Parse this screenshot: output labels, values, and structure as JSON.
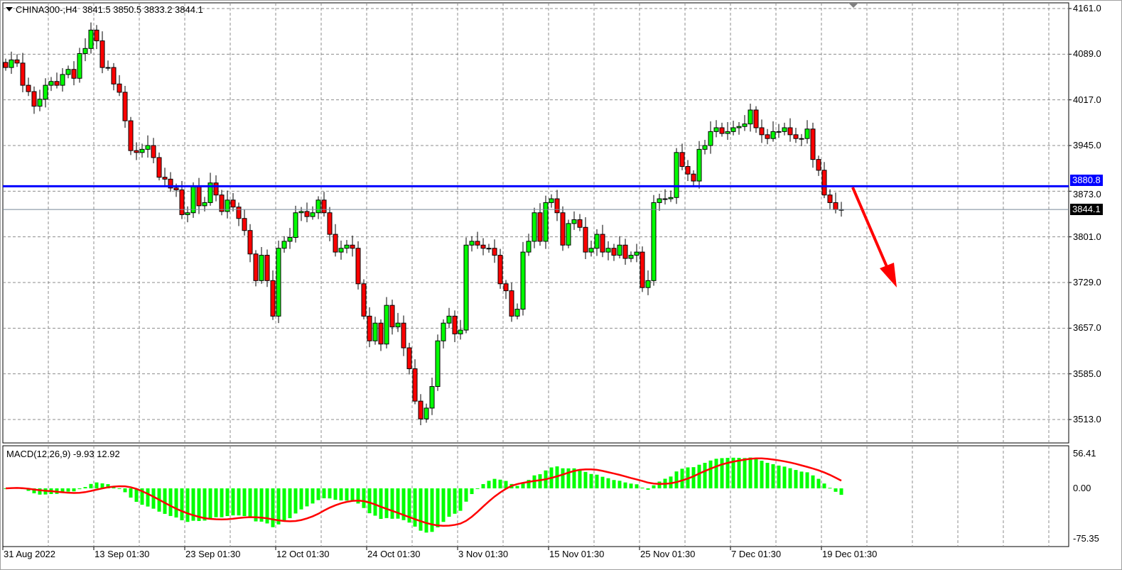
{
  "header": {
    "symbol_title": "CHINA300-,H4",
    "ohlc": "3841.5 3850.5 3833.2 3844.1"
  },
  "macd": {
    "title": "MACD(12,26,9) -9.93 12.92",
    "params": [
      12,
      26,
      9
    ],
    "axis_labels": [
      "56.41",
      "0.00",
      "-75.35"
    ],
    "histogram_color": "#00ff00",
    "signal_color": "#ff0000"
  },
  "colors": {
    "bull": "#00ff00",
    "bear": "#ff0000",
    "hline": "#0000ff",
    "arrow": "#ff0000",
    "bid_line": "#778899"
  },
  "chart_data": {
    "type": "candlestick",
    "symbol": "CHINA300-",
    "timeframe": "H4",
    "ylim": [
      3500,
      4170
    ],
    "price_ticks": [
      "4161.0",
      "4089.0",
      "4017.0",
      "3945.0",
      "3873.0",
      "3801.0",
      "3729.0",
      "3657.0",
      "3585.0",
      "3513.0"
    ],
    "time_labels": [
      "31 Aug 2022",
      "13 Sep 01:30",
      "23 Sep 01:30",
      "12 Oct 01:30",
      "24 Oct 01:30",
      "3 Nov 01:30",
      "15 Nov 01:30",
      "25 Nov 01:30",
      "7 Dec 01:30",
      "19 Dec 01:30"
    ],
    "horizontal_line": {
      "price": 3880.8,
      "label": "3880.8"
    },
    "current_price": {
      "price": 3844.1,
      "label": "3844.1"
    },
    "arrow_annotation": "downward",
    "grid": true,
    "closes": [
      4068,
      4080,
      4075,
      4040,
      4030,
      4007,
      4018,
      4040,
      4046,
      4040,
      4057,
      4065,
      4051,
      4090,
      4098,
      4127,
      4110,
      4068,
      4068,
      4042,
      4029,
      3984,
      3937,
      3934,
      3939,
      3945,
      3926,
      3895,
      3892,
      3878,
      3875,
      3836,
      3839,
      3881,
      3850,
      3855,
      3886,
      3867,
      3841,
      3859,
      3848,
      3830,
      3811,
      3774,
      3732,
      3772,
      3732,
      3676,
      3783,
      3794,
      3800,
      3839,
      3841,
      3833,
      3839,
      3859,
      3839,
      3805,
      3777,
      3783,
      3788,
      3783,
      3727,
      3676,
      3637,
      3665,
      3632,
      3693,
      3659,
      3665,
      3626,
      3593,
      3542,
      3514,
      3531,
      3565,
      3637,
      3665,
      3676,
      3648,
      3654,
      3788,
      3794,
      3788,
      3783,
      3783,
      3772,
      3727,
      3716,
      3676,
      3687,
      3777,
      3794,
      3839,
      3794,
      3855,
      3861,
      3839,
      3788,
      3822,
      3828,
      3816,
      3777,
      3783,
      3805,
      3777,
      3783,
      3772,
      3788,
      3767,
      3772,
      3777,
      3721,
      3732,
      3855,
      3861,
      3861,
      3863,
      3934,
      3912,
      3900,
      3889,
      3939,
      3945,
      3967,
      3973,
      3964,
      3967,
      3973,
      3975,
      3979,
      4001,
      3973,
      3962,
      3956,
      3967,
      3967,
      3973,
      3962,
      3956,
      3956,
      3971,
      3923,
      3906,
      3867,
      3855,
      3844,
      3844.1
    ]
  }
}
